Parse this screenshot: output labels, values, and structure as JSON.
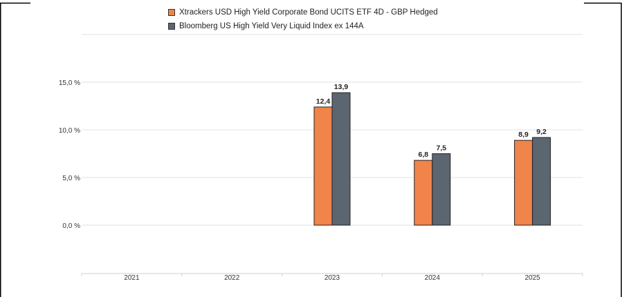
{
  "chart_data": {
    "type": "bar",
    "categories": [
      "2021",
      "2022",
      "2023",
      "2024",
      "2025"
    ],
    "series": [
      {
        "name": "Xtrackers USD High Yield Corporate Bond UCITS ETF 4D - GBP Hedged",
        "color": "#f0844a",
        "values": [
          null,
          null,
          12.4,
          6.8,
          8.9
        ],
        "labels": [
          "",
          "",
          "12,4",
          "6,8",
          "8,9"
        ]
      },
      {
        "name": "Bloomberg US High Yield Very Liquid Index ex 144A",
        "color": "#5b6670",
        "values": [
          null,
          null,
          13.9,
          7.5,
          9.2
        ],
        "labels": [
          "",
          "",
          "13,9",
          "7,5",
          "9,2"
        ]
      }
    ],
    "yticks": [
      0,
      5,
      10,
      15
    ],
    "ytick_labels": [
      "0,0 %",
      "5,0 %",
      "10,0 %",
      "15,0 %"
    ],
    "ylim": [
      0,
      15
    ],
    "grid": true,
    "legend_position": "top-center"
  }
}
